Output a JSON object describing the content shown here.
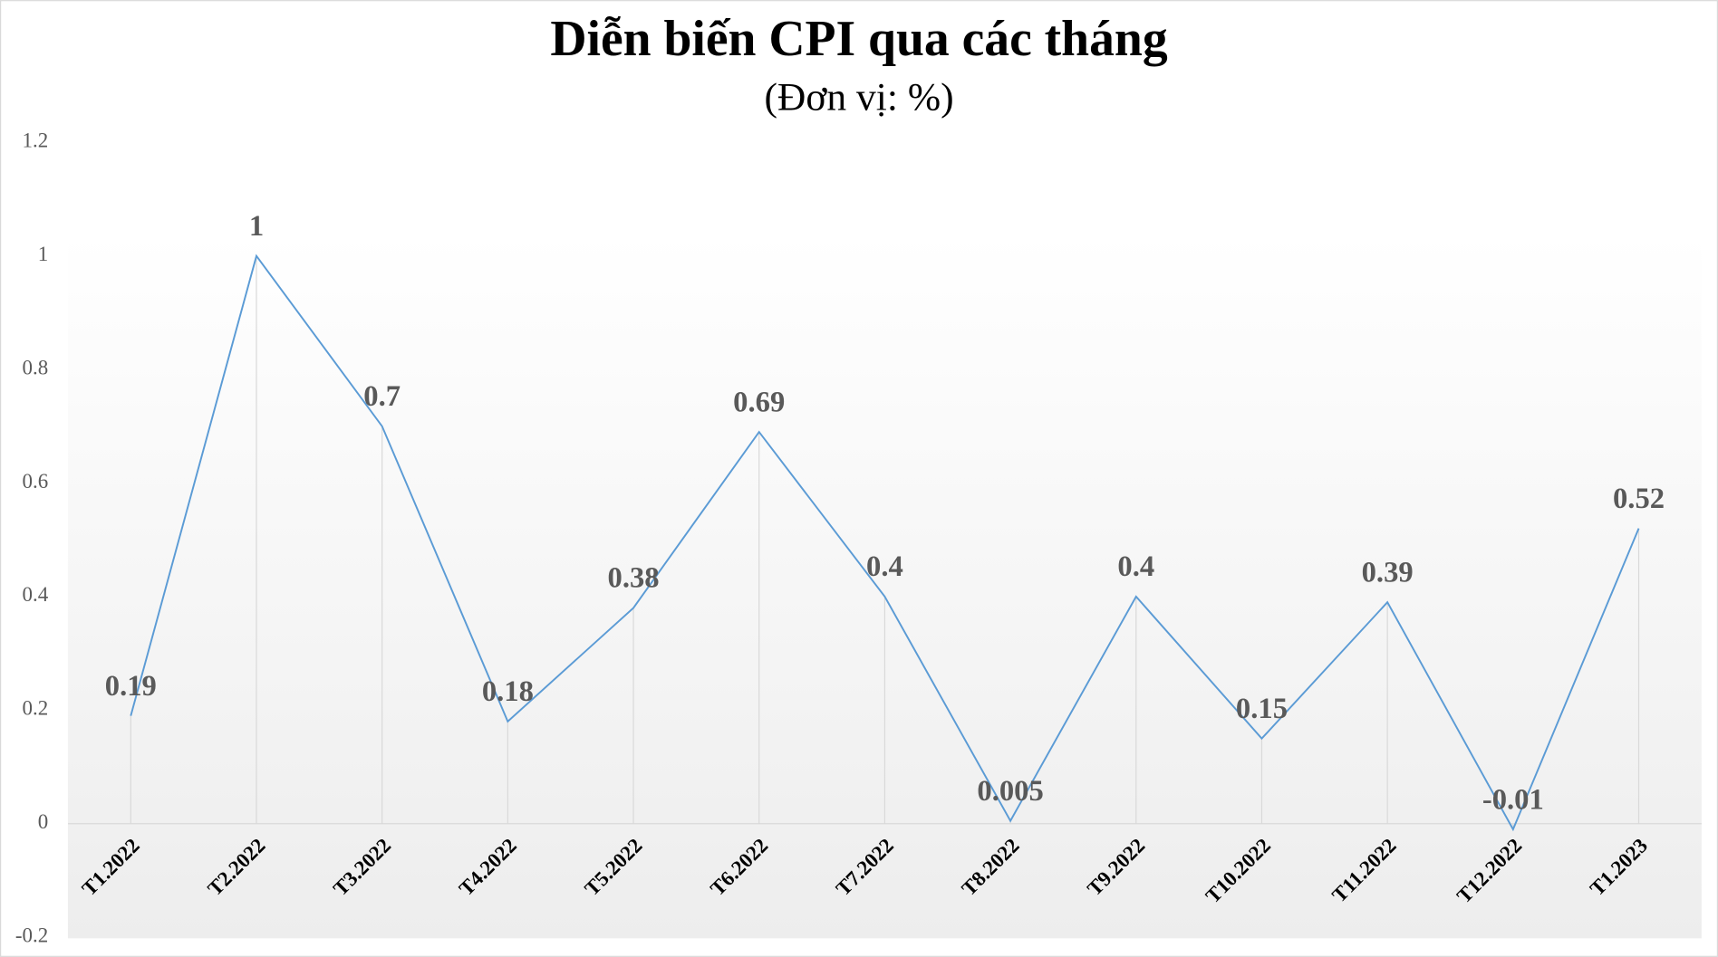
{
  "chart_data": {
    "type": "line",
    "title": "Diễn biến CPI qua các tháng",
    "subtitle": "(Đơn vị: %)",
    "categories": [
      "T1.2022",
      "T2.2022",
      "T3.2022",
      "T4.2022",
      "T5.2022",
      "T6.2022",
      "T7.2022",
      "T8.2022",
      "T9.2022",
      "T10.2022",
      "T11.2022",
      "T12.2022",
      "T1.2023"
    ],
    "series": [
      {
        "name": "CPI",
        "color": "#5b9bd5",
        "values": [
          0.19,
          1,
          0.7,
          0.18,
          0.38,
          0.69,
          0.4,
          0.005,
          0.4,
          0.15,
          0.39,
          -0.01,
          0.52
        ]
      }
    ],
    "ylim": [
      -0.2,
      1.2
    ],
    "yticks": [
      -0.2,
      0,
      0.2,
      0.4,
      0.6,
      0.8,
      1,
      1.2
    ],
    "grid": false,
    "drop_lines": true
  }
}
